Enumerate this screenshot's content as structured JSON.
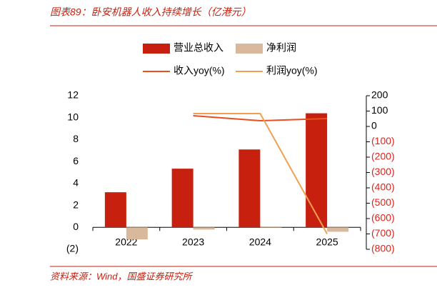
{
  "title": "图表89：卧安机器人收入持续增长（亿港元）",
  "source": "资料来源：Wind，国盛证券研究所",
  "chart_data": {
    "type": "bar",
    "categories": [
      "2022",
      "2023",
      "2024",
      "2025"
    ],
    "series": [
      {
        "name": "营业总收入",
        "type": "bar",
        "color": "#c8200e",
        "values": [
          3.2,
          5.35,
          7.1,
          10.4
        ]
      },
      {
        "name": "净利润",
        "type": "bar",
        "color": "#d9b99b",
        "values": [
          -1.1,
          -0.2,
          -0.05,
          -0.4
        ]
      },
      {
        "name": "收入yoy(%)",
        "type": "line",
        "axis": "y2",
        "color": "#e8501e",
        "values": [
          null,
          70,
          37,
          51
        ]
      },
      {
        "name": "利润yoy(%)",
        "type": "line",
        "axis": "y2",
        "color": "#f0a050",
        "values": [
          null,
          84,
          84,
          -700
        ]
      }
    ],
    "ylim": [
      -2,
      12
    ],
    "yticks": [
      {
        "value": -2,
        "label": "(2)"
      },
      0,
      2,
      4,
      6,
      8,
      10,
      12
    ],
    "y2lim": [
      -800,
      200
    ],
    "y2ticks": [
      {
        "value": -800,
        "label": "(800)"
      },
      {
        "value": -700,
        "label": "(700)"
      },
      {
        "value": -600,
        "label": "(600)"
      },
      {
        "value": -500,
        "label": "(500)"
      },
      {
        "value": -400,
        "label": "(400)"
      },
      {
        "value": -300,
        "label": "(300)"
      },
      {
        "value": -200,
        "label": "(200)"
      },
      {
        "value": -100,
        "label": "(100)"
      },
      0,
      100,
      200
    ],
    "negative_tick_color": "#e0201a"
  }
}
